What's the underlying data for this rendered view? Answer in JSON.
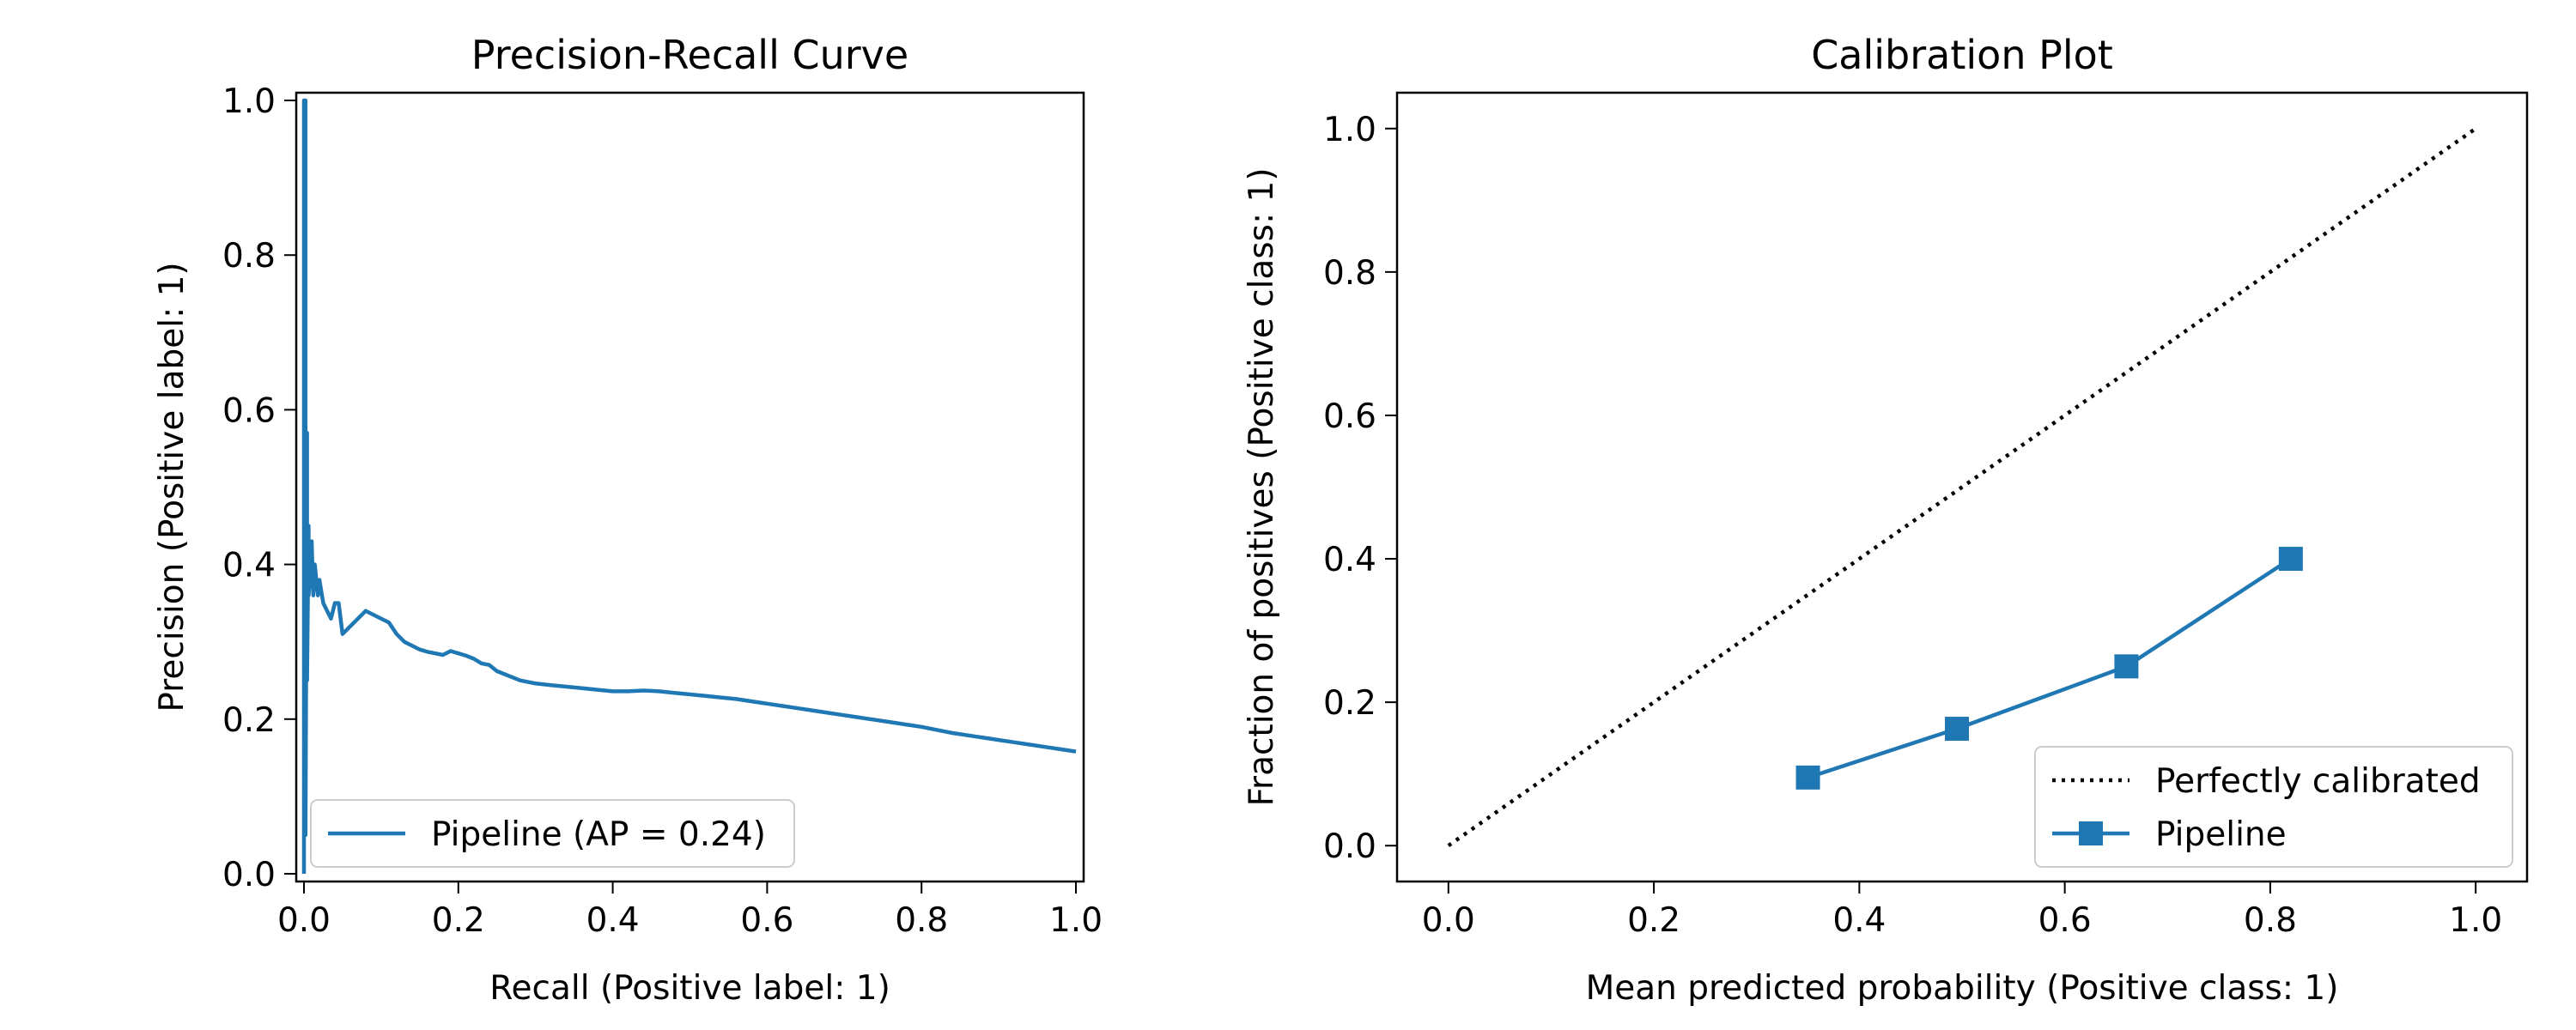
{
  "chart_data": [
    {
      "type": "line",
      "title": "Precision-Recall Curve",
      "xlabel": "Recall (Positive label: 1)",
      "ylabel": "Precision (Positive label: 1)",
      "xlim": [
        -0.01,
        1.01
      ],
      "ylim": [
        -0.01,
        1.01
      ],
      "xticks": [
        "0.0",
        "0.2",
        "0.4",
        "0.6",
        "0.8",
        "1.0"
      ],
      "yticks": [
        "0.0",
        "0.2",
        "0.4",
        "0.6",
        "0.8",
        "1.0"
      ],
      "grid": false,
      "legend_position": "lower-left",
      "series": [
        {
          "name": "Pipeline (AP = 0.24)",
          "color": "#1f77b4",
          "x": [
            0.0,
            0.0,
            0.002,
            0.002,
            0.004,
            0.004,
            0.006,
            0.006,
            0.008,
            0.01,
            0.012,
            0.014,
            0.016,
            0.018,
            0.02,
            0.025,
            0.03,
            0.035,
            0.04,
            0.045,
            0.05,
            0.06,
            0.07,
            0.08,
            0.09,
            0.1,
            0.11,
            0.12,
            0.13,
            0.14,
            0.15,
            0.16,
            0.17,
            0.18,
            0.19,
            0.2,
            0.21,
            0.22,
            0.23,
            0.24,
            0.25,
            0.26,
            0.28,
            0.3,
            0.32,
            0.34,
            0.36,
            0.38,
            0.4,
            0.42,
            0.44,
            0.46,
            0.48,
            0.5,
            0.52,
            0.54,
            0.56,
            0.58,
            0.6,
            0.62,
            0.64,
            0.66,
            0.68,
            0.7,
            0.72,
            0.74,
            0.76,
            0.78,
            0.8,
            0.82,
            0.84,
            0.86,
            0.88,
            0.9,
            0.92,
            0.94,
            0.96,
            0.98,
            1.0
          ],
          "y": [
            0.0,
            1.0,
            1.0,
            0.05,
            0.57,
            0.25,
            0.45,
            0.36,
            0.39,
            0.43,
            0.36,
            0.4,
            0.38,
            0.36,
            0.38,
            0.35,
            0.34,
            0.33,
            0.35,
            0.35,
            0.31,
            0.32,
            0.33,
            0.34,
            0.335,
            0.33,
            0.325,
            0.31,
            0.3,
            0.295,
            0.29,
            0.287,
            0.285,
            0.283,
            0.288,
            0.285,
            0.282,
            0.278,
            0.272,
            0.27,
            0.262,
            0.258,
            0.25,
            0.246,
            0.244,
            0.242,
            0.24,
            0.238,
            0.236,
            0.236,
            0.237,
            0.236,
            0.234,
            0.232,
            0.23,
            0.228,
            0.226,
            0.223,
            0.22,
            0.217,
            0.214,
            0.211,
            0.208,
            0.205,
            0.202,
            0.199,
            0.196,
            0.193,
            0.19,
            0.186,
            0.182,
            0.179,
            0.176,
            0.173,
            0.17,
            0.167,
            0.164,
            0.161,
            0.158
          ]
        }
      ]
    },
    {
      "type": "line",
      "title": "Calibration Plot",
      "xlabel": "Mean predicted probability (Positive class: 1)",
      "ylabel": "Fraction of positives (Positive class: 1)",
      "xlim": [
        -0.05,
        1.05
      ],
      "ylim": [
        -0.05,
        1.05
      ],
      "xticks": [
        "0.0",
        "0.2",
        "0.4",
        "0.6",
        "0.8",
        "1.0"
      ],
      "yticks": [
        "0.0",
        "0.2",
        "0.4",
        "0.6",
        "0.8",
        "1.0"
      ],
      "grid": false,
      "legend_position": "lower-right",
      "series": [
        {
          "name": "Perfectly calibrated",
          "color": "#000000",
          "style": "dotted",
          "x": [
            0.0,
            1.0
          ],
          "y": [
            0.0,
            1.0
          ]
        },
        {
          "name": "Pipeline",
          "color": "#1f77b4",
          "marker": "square",
          "x": [
            0.35,
            0.495,
            0.66,
            0.82
          ],
          "y": [
            0.095,
            0.163,
            0.25,
            0.4
          ]
        }
      ]
    }
  ]
}
